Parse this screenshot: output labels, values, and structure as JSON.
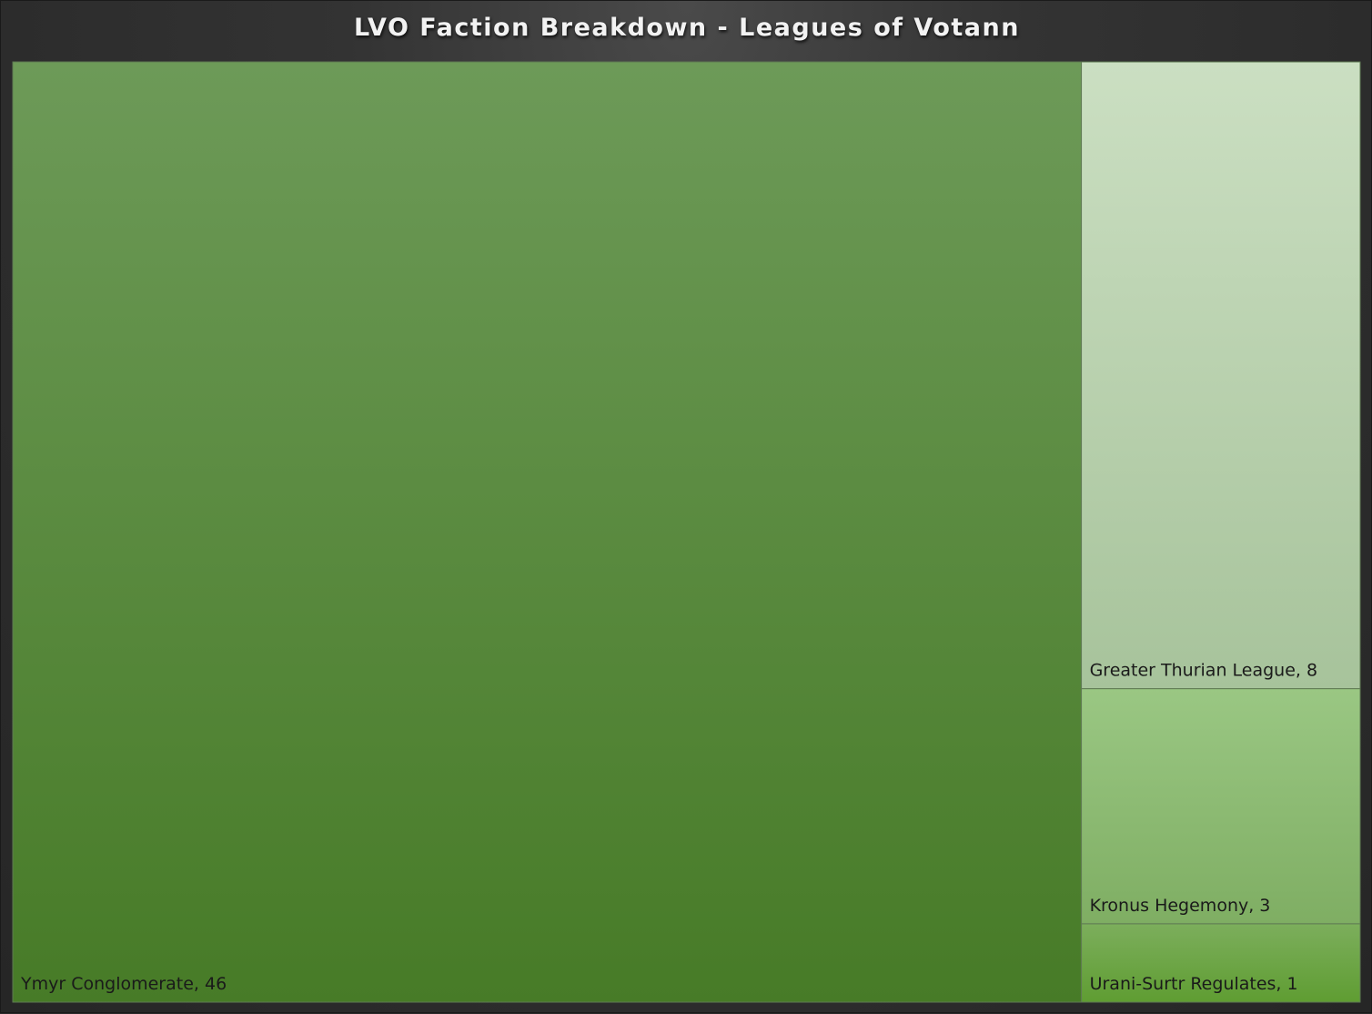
{
  "chart_data": {
    "type": "treemap",
    "title": "LVO Faction Breakdown - Leagues of Votann",
    "items": [
      {
        "name": "Ymyr Conglomerate",
        "value": 46,
        "label": "Ymyr Conglomerate, 46",
        "color_top": "#6d9a58",
        "color_bottom": "#477b27"
      },
      {
        "name": "Greater Thurian League",
        "value": 8,
        "label": "Greater Thurian League, 8",
        "color_top": "#cbdfc2",
        "color_bottom": "#a7c39b"
      },
      {
        "name": "Kronus Hegemony",
        "value": 3,
        "label": "Kronus Hegemony, 3",
        "color_top": "#9ac783",
        "color_bottom": "#7fae63"
      },
      {
        "name": "Urani-Surtr Regulates",
        "value": 1,
        "label": "Urani-Surtr Regulates, 1",
        "color_top": "#7cae5c",
        "color_bottom": "#5f9d32"
      }
    ]
  }
}
